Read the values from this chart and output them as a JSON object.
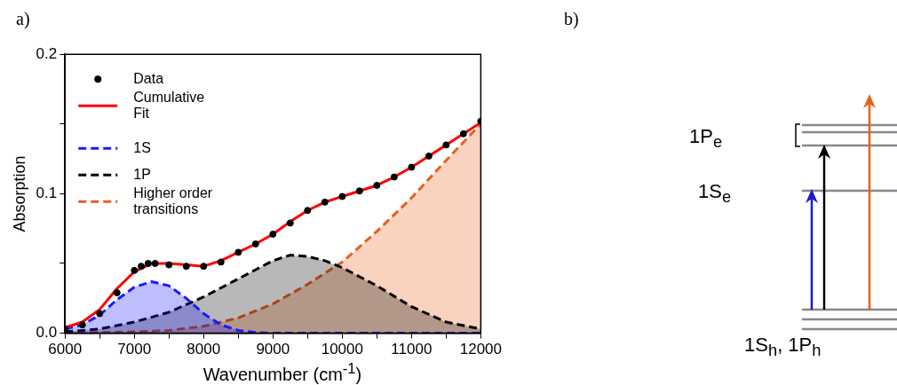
{
  "chart_data": [
    {
      "type": "line",
      "title": "a)",
      "xlabel": "Wavenumber (cm$^{-1}$)",
      "ylabel": "Absorption",
      "xlim": [
        6000,
        12000
      ],
      "xticks": [
        6000,
        {
          "value": 6500,
          "label": null
        },
        7000,
        {
          "value": 7500,
          "label": null
        },
        8000,
        {
          "value": 8500,
          "label": null
        },
        9000,
        {
          "value": 9500,
          "label": null
        },
        10000,
        {
          "value": 10500,
          "label": null
        },
        11000,
        {
          "value": 11500,
          "label": null
        },
        12000
      ],
      "ylim": [
        0,
        0.2
      ],
      "yticks": [
        {
          "value": 0,
          "label": "0.0"
        },
        {
          "value": 0.05,
          "label": null
        },
        0.1,
        {
          "value": 0.15,
          "label": null
        },
        0.2
      ],
      "grid": false,
      "legend": "top left",
      "series": [
        {
          "name": "Data",
          "type": "scatter",
          "marker": "circle",
          "color": "#000000",
          "x": [
            6000,
            6250,
            6500,
            6750,
            7000,
            7100,
            7200,
            7300,
            7500,
            7750,
            8000,
            8250,
            8500,
            8750,
            9000,
            9250,
            9500,
            9750,
            10000,
            10250,
            10500,
            10750,
            11000,
            11250,
            11500,
            11750,
            12000
          ],
          "values": [
            0.003,
            0.006,
            0.014,
            0.029,
            0.045,
            0.048,
            0.05,
            0.05,
            0.049,
            0.048,
            0.048,
            0.051,
            0.058,
            0.064,
            0.071,
            0.079,
            0.088,
            0.094,
            0.098,
            0.102,
            0.106,
            0.112,
            0.119,
            0.127,
            0.135,
            0.143,
            0.152
          ]
        },
        {
          "name": "Cumulative Fit",
          "type": "line",
          "line_style": "solid",
          "color": "#ff0000",
          "x": [
            6000,
            6250,
            6500,
            6750,
            7000,
            7250,
            7500,
            7750,
            8000,
            8250,
            8500,
            8750,
            9000,
            9250,
            9500,
            9750,
            10000,
            10250,
            10500,
            10750,
            11000,
            11250,
            11500,
            11750,
            12000
          ],
          "values": [
            0.004,
            0.008,
            0.017,
            0.032,
            0.044,
            0.05,
            0.05,
            0.049,
            0.048,
            0.052,
            0.058,
            0.064,
            0.071,
            0.08,
            0.088,
            0.094,
            0.098,
            0.102,
            0.106,
            0.112,
            0.119,
            0.127,
            0.135,
            0.143,
            0.151
          ]
        },
        {
          "name": "1S",
          "type": "area",
          "line_style": "dashed",
          "color": "#1a1aff",
          "x": [
            6000,
            6250,
            6500,
            6750,
            7000,
            7250,
            7500,
            7750,
            8000,
            8250,
            8500,
            8750,
            9000,
            10000,
            11000,
            12000
          ],
          "values": [
            0.003,
            0.006,
            0.013,
            0.024,
            0.033,
            0.037,
            0.034,
            0.025,
            0.014,
            0.006,
            0.002,
            0.0005,
            0,
            0,
            0,
            0
          ]
        },
        {
          "name": "1P",
          "type": "area",
          "line_style": "dashed",
          "color": "#000000",
          "x": [
            6000,
            6500,
            7000,
            7500,
            8000,
            8500,
            9000,
            9250,
            9500,
            9750,
            10000,
            10500,
            11000,
            11500,
            12000
          ],
          "values": [
            0.001,
            0.003,
            0.008,
            0.015,
            0.026,
            0.039,
            0.052,
            0.056,
            0.055,
            0.052,
            0.047,
            0.034,
            0.019,
            0.008,
            0.003
          ]
        },
        {
          "name": "Higher order transitions",
          "type": "area",
          "line_style": "dashed",
          "color": "#e8601c",
          "x": [
            6000,
            7000,
            7500,
            8000,
            8500,
            9000,
            9500,
            10000,
            10500,
            11000,
            11500,
            12000
          ],
          "values": [
            0,
            0.001,
            0.002,
            0.005,
            0.011,
            0.021,
            0.035,
            0.051,
            0.073,
            0.097,
            0.124,
            0.15
          ]
        }
      ]
    },
    {
      "type": "other",
      "title": "b)",
      "annotations": [
        "1P$_{e}$",
        "1S$_{e}$",
        "1S$_{h}$, 1P$_{h}$"
      ]
    }
  ]
}
